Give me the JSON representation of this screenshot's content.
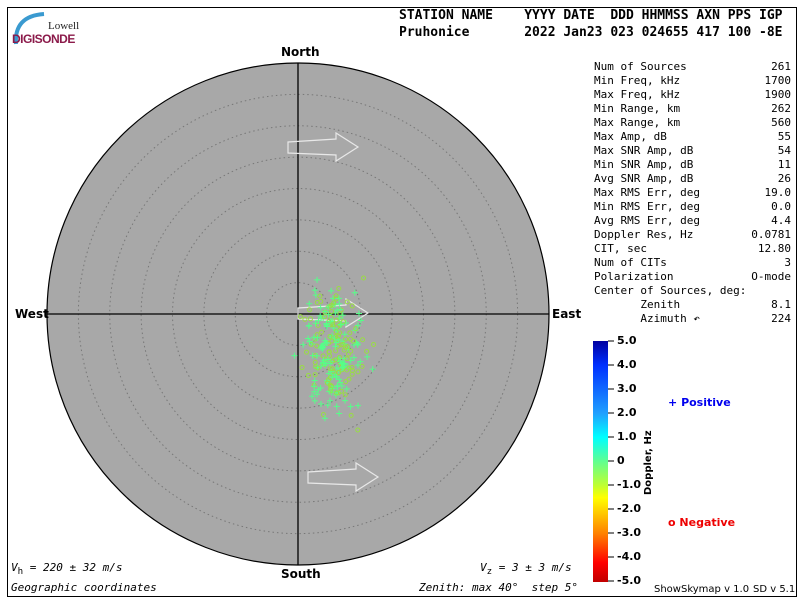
{
  "header": {
    "logo_top": "Lowell",
    "logo_bottom": "DIGISONDE",
    "col_labels": "STATION NAME    YYYY DATE  DDD HHMMSS AXN PPS IGP",
    "col_values": "Pruhonice       2022 Jan23 023 024655 417 100 -8E"
  },
  "compass": {
    "north": "North",
    "south": "South",
    "east": "East",
    "west": "West"
  },
  "stats": [
    {
      "label": "Num of Sources",
      "value": "261"
    },
    {
      "label": "Min Freq, kHz",
      "value": "1700"
    },
    {
      "label": "Max Freq, kHz",
      "value": "1900"
    },
    {
      "label": "Min Range, km",
      "value": "262"
    },
    {
      "label": "Max Range, km",
      "value": "560"
    },
    {
      "label": "Max Amp, dB",
      "value": "55"
    },
    {
      "label": "Max SNR Amp, dB",
      "value": "54"
    },
    {
      "label": "Min SNR Amp, dB",
      "value": "11"
    },
    {
      "label": "Avg SNR Amp, dB",
      "value": "26"
    },
    {
      "label": "Max RMS Err, deg",
      "value": "19.0"
    },
    {
      "label": "Min RMS Err, deg",
      "value": "0.0"
    },
    {
      "label": "Avg RMS Err, deg",
      "value": "4.4"
    },
    {
      "label": "Doppler Res, Hz",
      "value": "0.0781"
    },
    {
      "label": "CIT, sec",
      "value": "12.80"
    },
    {
      "label": "Num of CITs",
      "value": "3"
    },
    {
      "label": "Polarization",
      "value": "O-mode"
    },
    {
      "label": "Center of Sources, deg:",
      "value": ""
    },
    {
      "label": "       Zenith",
      "value": "8.1"
    },
    {
      "label": "       Azimuth ↶",
      "value": "224"
    }
  ],
  "colorbar": {
    "title": "Doppler, Hz",
    "ticks": [
      "5.0",
      "4.0",
      "3.0",
      "2.0",
      "1.0",
      "0",
      "-1.0",
      "-2.0",
      "-3.0",
      "-4.0",
      "-5.0"
    ],
    "range": [
      -5,
      5
    ]
  },
  "legend": {
    "positive_symbol": "+",
    "positive": "Positive",
    "negative_symbol": "o",
    "negative": "Negative",
    "positive_color": "#0000ee",
    "negative_color": "#ee0000"
  },
  "footer": {
    "vh_sym": "V",
    "vh_sub": "h",
    "vh_text": " = 220 ± 32 m/s",
    "vz_sym": "V",
    "vz_sub": "z",
    "vz_text": " = 3 ± 3 m/s",
    "coords": "Geographic coordinates",
    "zenith": "Zenith: max 40°  step 5°",
    "version1": "ShowSkymap v 1.0",
    "version2": "SD v 5.1"
  },
  "skymap": {
    "zenith_max_deg": 40,
    "zenith_step_deg": 5,
    "background": "#a8a8a8",
    "num_sources": 261,
    "center_zenith_deg": 8.1,
    "center_azimuth_deg": 224
  }
}
